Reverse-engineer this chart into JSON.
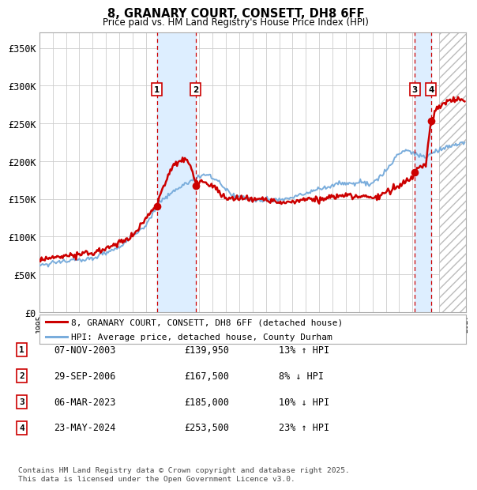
{
  "title": "8, GRANARY COURT, CONSETT, DH8 6FF",
  "subtitle": "Price paid vs. HM Land Registry's House Price Index (HPI)",
  "ylim": [
    0,
    370000
  ],
  "yticks": [
    0,
    50000,
    100000,
    150000,
    200000,
    250000,
    300000,
    350000
  ],
  "ytick_labels": [
    "£0",
    "£50K",
    "£100K",
    "£150K",
    "£200K",
    "£250K",
    "£300K",
    "£350K"
  ],
  "x_start_year": 1995,
  "x_end_year": 2027,
  "background_color": "#ffffff",
  "plot_bg_color": "#ffffff",
  "grid_color": "#cccccc",
  "hpi_line_color": "#7aaddc",
  "price_line_color": "#cc0000",
  "sale_marker_color": "#cc0000",
  "transaction_vlines": [
    2003.83,
    2006.74,
    2023.17,
    2024.39
  ],
  "transaction_labels": [
    "1",
    "2",
    "3",
    "4"
  ],
  "transaction_prices": [
    139950,
    167500,
    185000,
    253500
  ],
  "shading_ranges": [
    [
      2003.83,
      2006.74
    ],
    [
      2023.17,
      2024.39
    ]
  ],
  "shading_color": "#ddeeff",
  "hatch_after": 2025.0,
  "legend_entries": [
    {
      "label": "8, GRANARY COURT, CONSETT, DH8 6FF (detached house)",
      "color": "#cc0000"
    },
    {
      "label": "HPI: Average price, detached house, County Durham",
      "color": "#7aaddc"
    }
  ],
  "table_rows": [
    {
      "num": "1",
      "date": "07-NOV-2003",
      "price": "£139,950",
      "hpi": "13% ↑ HPI"
    },
    {
      "num": "2",
      "date": "29-SEP-2006",
      "price": "£167,500",
      "hpi": "8% ↓ HPI"
    },
    {
      "num": "3",
      "date": "06-MAR-2023",
      "price": "£185,000",
      "hpi": "10% ↓ HPI"
    },
    {
      "num": "4",
      "date": "23-MAY-2024",
      "price": "£253,500",
      "hpi": "23% ↑ HPI"
    }
  ],
  "footer": "Contains HM Land Registry data © Crown copyright and database right 2025.\nThis data is licensed under the Open Government Licence v3.0."
}
